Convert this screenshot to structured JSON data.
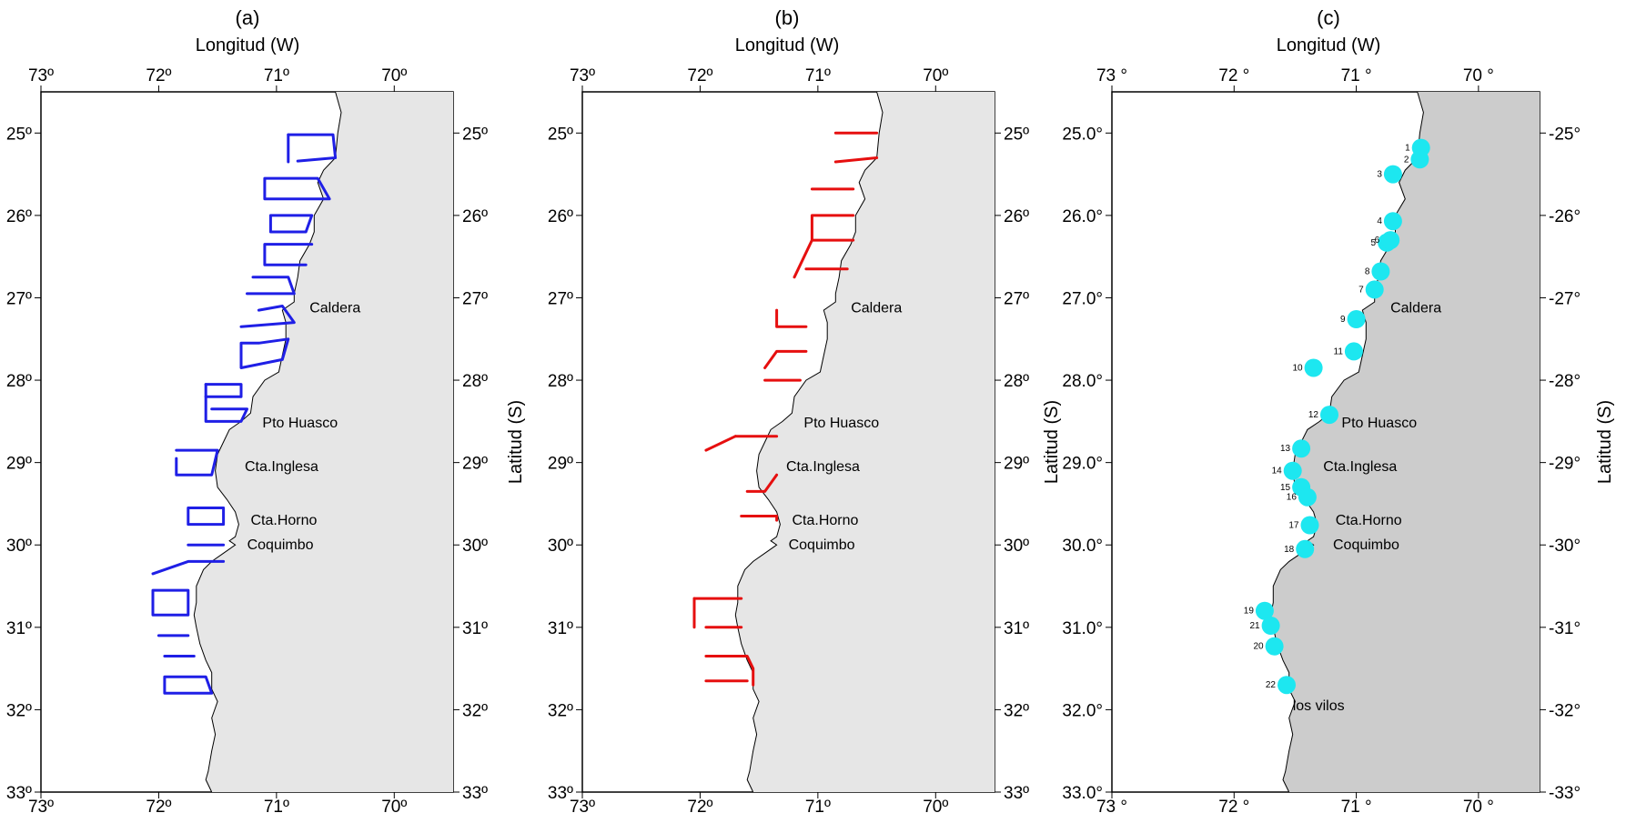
{
  "panels": [
    {
      "id": "a",
      "label": "(a)",
      "x_title": "Longitud (W)",
      "y_title": "",
      "lon_ticks": [
        "73º",
        "72º",
        "71º",
        "70º"
      ],
      "lat_ticks_left": [
        "25º",
        "26º",
        "27º",
        "28º",
        "29º",
        "30º",
        "31º",
        "32º",
        "33º"
      ],
      "lat_ticks_right": [
        "25º",
        "26º",
        "27º",
        "28º",
        "29º",
        "30º",
        "31º",
        "32º",
        "33º"
      ],
      "land_color": "#e6e6e6",
      "track_color": "#1f1fe6",
      "places": [
        {
          "name": "Caldera",
          "lon": 70.75,
          "lat": 27.12
        },
        {
          "name": "Pto Huasco",
          "lon": 71.15,
          "lat": 28.52
        },
        {
          "name": "Cta.Inglesa",
          "lon": 71.3,
          "lat": 29.05
        },
        {
          "name": "Cta.Horno",
          "lon": 71.25,
          "lat": 29.7
        },
        {
          "name": "Coquimbo",
          "lon": 71.28,
          "lat": 30.0
        }
      ],
      "tracks": [
        [
          [
            70.9,
            25.02
          ],
          [
            70.52,
            25.02
          ],
          [
            70.5,
            25.3
          ],
          [
            70.82,
            25.34
          ]
        ],
        [
          [
            70.9,
            25.02
          ],
          [
            70.9,
            25.35
          ]
        ],
        [
          [
            71.1,
            25.55
          ],
          [
            70.65,
            25.55
          ],
          [
            70.55,
            25.8
          ],
          [
            71.1,
            25.8
          ],
          [
            71.1,
            25.55
          ]
        ],
        [
          [
            71.05,
            26.0
          ],
          [
            70.7,
            26.0
          ],
          [
            70.75,
            26.2
          ],
          [
            71.05,
            26.2
          ],
          [
            71.05,
            26.0
          ]
        ],
        [
          [
            70.7,
            26.35
          ],
          [
            71.1,
            26.35
          ],
          [
            71.1,
            26.6
          ],
          [
            70.75,
            26.6
          ]
        ],
        [
          [
            71.2,
            26.75
          ],
          [
            70.9,
            26.75
          ],
          [
            70.85,
            26.95
          ],
          [
            71.25,
            26.95
          ]
        ],
        [
          [
            71.15,
            27.15
          ],
          [
            70.95,
            27.1
          ],
          [
            70.85,
            27.3
          ],
          [
            71.3,
            27.35
          ]
        ],
        [
          [
            71.15,
            27.55
          ],
          [
            70.9,
            27.5
          ],
          [
            70.95,
            27.75
          ],
          [
            71.3,
            27.85
          ],
          [
            71.3,
            27.55
          ],
          [
            71.15,
            27.55
          ]
        ],
        [
          [
            71.6,
            28.05
          ],
          [
            71.3,
            28.05
          ],
          [
            71.3,
            28.2
          ],
          [
            71.6,
            28.2
          ]
        ],
        [
          [
            71.55,
            28.35
          ],
          [
            71.25,
            28.35
          ],
          [
            71.3,
            28.5
          ],
          [
            71.6,
            28.5
          ],
          [
            71.6,
            28.05
          ]
        ],
        [
          [
            71.85,
            28.85
          ],
          [
            71.5,
            28.85
          ],
          [
            71.55,
            29.15
          ],
          [
            71.85,
            29.15
          ],
          [
            71.85,
            28.95
          ]
        ],
        [
          [
            71.75,
            29.55
          ],
          [
            71.45,
            29.55
          ],
          [
            71.45,
            29.75
          ],
          [
            71.75,
            29.75
          ],
          [
            71.75,
            29.55
          ]
        ],
        [
          [
            71.75,
            30.0
          ],
          [
            71.45,
            30.0
          ]
        ],
        [
          [
            72.05,
            30.35
          ],
          [
            71.75,
            30.2
          ],
          [
            71.45,
            30.2
          ]
        ],
        [
          [
            72.05,
            30.55
          ],
          [
            71.75,
            30.55
          ],
          [
            71.75,
            30.85
          ],
          [
            72.05,
            30.85
          ],
          [
            72.05,
            30.55
          ]
        ],
        [
          [
            72.0,
            31.1
          ],
          [
            71.75,
            31.1
          ]
        ],
        [
          [
            71.95,
            31.35
          ],
          [
            71.7,
            31.35
          ]
        ],
        [
          [
            71.95,
            31.6
          ],
          [
            71.6,
            31.6
          ],
          [
            71.55,
            31.8
          ],
          [
            71.95,
            31.8
          ],
          [
            71.95,
            31.6
          ]
        ]
      ]
    },
    {
      "id": "b",
      "label": "(b)",
      "x_title": "Longitud (W)",
      "y_title": "Latitud (S)",
      "lon_ticks": [
        "73º",
        "72º",
        "71º",
        "70º"
      ],
      "lat_ticks_left": [
        "25º",
        "26º",
        "27º",
        "28º",
        "29º",
        "30º",
        "31º",
        "32º",
        "33º"
      ],
      "lat_ticks_right": [
        "25º",
        "26º",
        "27º",
        "28º",
        "29º",
        "30º",
        "31º",
        "32º",
        "33º"
      ],
      "land_color": "#e6e6e6",
      "track_color": "#e60f0f",
      "places": [
        {
          "name": "Caldera",
          "lon": 70.75,
          "lat": 27.12
        },
        {
          "name": "Pto Huasco",
          "lon": 71.15,
          "lat": 28.52
        },
        {
          "name": "Cta.Inglesa",
          "lon": 71.3,
          "lat": 29.05
        },
        {
          "name": "Cta.Horno",
          "lon": 71.25,
          "lat": 29.7
        },
        {
          "name": "Coquimbo",
          "lon": 71.28,
          "lat": 30.0
        }
      ],
      "tracks": [
        [
          [
            70.5,
            25.0
          ],
          [
            70.85,
            25.0
          ]
        ],
        [
          [
            70.5,
            25.3
          ],
          [
            70.85,
            25.35
          ]
        ],
        [
          [
            70.7,
            25.68
          ],
          [
            71.05,
            25.68
          ]
        ],
        [
          [
            70.7,
            26.0
          ],
          [
            71.05,
            26.0
          ],
          [
            71.05,
            26.3
          ],
          [
            70.7,
            26.3
          ]
        ],
        [
          [
            71.05,
            26.3
          ],
          [
            71.2,
            26.75
          ]
        ],
        [
          [
            70.75,
            26.65
          ],
          [
            71.1,
            26.65
          ]
        ],
        [
          [
            71.35,
            27.15
          ],
          [
            71.35,
            27.35
          ],
          [
            71.1,
            27.35
          ]
        ],
        [
          [
            71.45,
            27.85
          ],
          [
            71.35,
            27.65
          ],
          [
            71.1,
            27.65
          ]
        ],
        [
          [
            71.45,
            28.0
          ],
          [
            71.15,
            28.0
          ]
        ],
        [
          [
            71.7,
            28.68
          ],
          [
            71.35,
            28.68
          ]
        ],
        [
          [
            71.7,
            28.68
          ],
          [
            71.95,
            28.85
          ]
        ],
        [
          [
            71.35,
            29.15
          ],
          [
            71.45,
            29.35
          ],
          [
            71.6,
            29.35
          ]
        ],
        [
          [
            71.65,
            29.65
          ],
          [
            71.35,
            29.65
          ],
          [
            71.35,
            29.7
          ]
        ],
        [
          [
            72.05,
            30.65
          ],
          [
            71.65,
            30.65
          ]
        ],
        [
          [
            72.05,
            30.65
          ],
          [
            72.05,
            31.0
          ]
        ],
        [
          [
            71.95,
            31.0
          ],
          [
            71.65,
            31.0
          ]
        ],
        [
          [
            71.95,
            31.35
          ],
          [
            71.6,
            31.35
          ],
          [
            71.55,
            31.5
          ],
          [
            71.55,
            31.7
          ]
        ],
        [
          [
            71.95,
            31.65
          ],
          [
            71.6,
            31.65
          ]
        ]
      ]
    },
    {
      "id": "c",
      "label": "(c)",
      "x_title": "Longitud (W)",
      "y_title": "Latitud (S)",
      "lon_ticks": [
        "73 °",
        "72 °",
        "71 °",
        "70 °"
      ],
      "lat_ticks_left": [
        "25.0°",
        "26.0°",
        "27.0°",
        "28.0°",
        "29.0°",
        "30.0°",
        "31.0°",
        "32.0°",
        "33.0°"
      ],
      "lat_ticks_right": [
        "-25°",
        "-26°",
        "-27°",
        "-28°",
        "-29°",
        "-30°",
        "-31°",
        "-32°",
        "-33°"
      ],
      "land_color": "#cccccc",
      "station_color": "#1de7f0",
      "places": [
        {
          "name": "Caldera",
          "lon": 70.75,
          "lat": 27.12
        },
        {
          "name": "Pto Huasco",
          "lon": 71.15,
          "lat": 28.52
        },
        {
          "name": "Cta.Inglesa",
          "lon": 71.3,
          "lat": 29.05
        },
        {
          "name": "Cta.Horno",
          "lon": 71.2,
          "lat": 29.7
        },
        {
          "name": "Coquimbo",
          "lon": 71.22,
          "lat": 30.0
        },
        {
          "name": "los vilos",
          "lon": 71.55,
          "lat": 31.95
        }
      ],
      "stations": [
        {
          "n": "1",
          "lon": 70.47,
          "lat": 25.18
        },
        {
          "n": "2",
          "lon": 70.48,
          "lat": 25.32
        },
        {
          "n": "3",
          "lon": 70.7,
          "lat": 25.5
        },
        {
          "n": "4",
          "lon": 70.7,
          "lat": 26.07
        },
        {
          "n": "5",
          "lon": 70.75,
          "lat": 26.33
        },
        {
          "n": "6",
          "lon": 70.72,
          "lat": 26.3
        },
        {
          "n": "8",
          "lon": 70.8,
          "lat": 26.68
        },
        {
          "n": "7",
          "lon": 70.85,
          "lat": 26.9
        },
        {
          "n": "9",
          "lon": 71.0,
          "lat": 27.26
        },
        {
          "n": "11",
          "lon": 71.02,
          "lat": 27.65
        },
        {
          "n": "10",
          "lon": 71.35,
          "lat": 27.85
        },
        {
          "n": "12",
          "lon": 71.22,
          "lat": 28.42
        },
        {
          "n": "13",
          "lon": 71.45,
          "lat": 28.83
        },
        {
          "n": "14",
          "lon": 71.52,
          "lat": 29.1
        },
        {
          "n": "15",
          "lon": 71.45,
          "lat": 29.3
        },
        {
          "n": "16",
          "lon": 71.4,
          "lat": 29.42
        },
        {
          "n": "17",
          "lon": 71.38,
          "lat": 29.76
        },
        {
          "n": "18",
          "lon": 71.42,
          "lat": 30.05
        },
        {
          "n": "19",
          "lon": 71.75,
          "lat": 30.8
        },
        {
          "n": "21",
          "lon": 71.7,
          "lat": 30.98
        },
        {
          "n": "20",
          "lon": 71.67,
          "lat": 31.23
        },
        {
          "n": "22",
          "lon": 71.57,
          "lat": 31.7
        }
      ]
    }
  ],
  "coastline": [
    [
      70.5,
      24.5
    ],
    [
      70.45,
      24.75
    ],
    [
      70.48,
      25.0
    ],
    [
      70.5,
      25.3
    ],
    [
      70.6,
      25.45
    ],
    [
      70.65,
      25.6
    ],
    [
      70.6,
      25.8
    ],
    [
      70.68,
      26.0
    ],
    [
      70.68,
      26.2
    ],
    [
      70.72,
      26.35
    ],
    [
      70.8,
      26.55
    ],
    [
      70.82,
      26.75
    ],
    [
      70.85,
      26.95
    ],
    [
      70.85,
      27.05
    ],
    [
      70.95,
      27.15
    ],
    [
      70.92,
      27.3
    ],
    [
      70.92,
      27.5
    ],
    [
      70.95,
      27.7
    ],
    [
      70.98,
      27.9
    ],
    [
      71.1,
      28.0
    ],
    [
      71.2,
      28.2
    ],
    [
      71.22,
      28.4
    ],
    [
      71.3,
      28.5
    ],
    [
      71.4,
      28.6
    ],
    [
      71.45,
      28.75
    ],
    [
      71.5,
      28.9
    ],
    [
      71.52,
      29.1
    ],
    [
      71.5,
      29.3
    ],
    [
      71.42,
      29.45
    ],
    [
      71.35,
      29.6
    ],
    [
      71.32,
      29.75
    ],
    [
      71.35,
      29.9
    ],
    [
      71.4,
      29.95
    ],
    [
      71.35,
      30.0
    ],
    [
      71.45,
      30.1
    ],
    [
      71.55,
      30.2
    ],
    [
      71.62,
      30.3
    ],
    [
      71.68,
      30.5
    ],
    [
      71.68,
      30.7
    ],
    [
      71.7,
      30.85
    ],
    [
      71.68,
      31.0
    ],
    [
      71.65,
      31.2
    ],
    [
      71.6,
      31.4
    ],
    [
      71.55,
      31.55
    ],
    [
      71.55,
      31.75
    ],
    [
      71.5,
      31.9
    ],
    [
      71.55,
      32.1
    ],
    [
      71.52,
      32.3
    ],
    [
      71.55,
      32.5
    ],
    [
      71.58,
      32.75
    ],
    [
      71.6,
      32.85
    ],
    [
      71.55,
      33.0
    ]
  ]
}
